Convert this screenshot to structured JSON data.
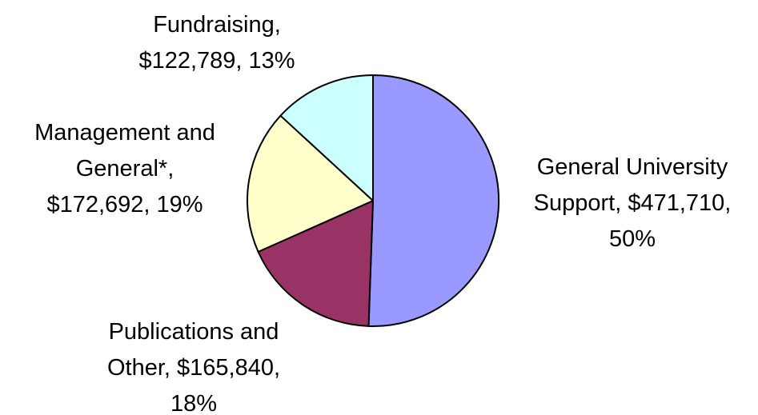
{
  "chart_data": {
    "type": "pie",
    "title": "",
    "start": "12 o'clock",
    "direction": "clockwise",
    "legend": "none (labels on slices)",
    "slices": [
      {
        "label": "General University Support",
        "amount": "$471,710",
        "value": 471710,
        "percent": "50%",
        "color": "#9999ff",
        "label_lines": [
          "General University",
          "Support, $471,710,",
          "50%"
        ]
      },
      {
        "label": "Publications and Other",
        "amount": "$165,840",
        "value": 165840,
        "percent": "18%",
        "color": "#993366",
        "label_lines": [
          "Publications and",
          "Other, $165,840,",
          "18%"
        ]
      },
      {
        "label": "Management and General*",
        "amount": "$172,692",
        "value": 172692,
        "percent": "19%",
        "color": "#ffffcc",
        "label_lines": [
          "Management and",
          "General*,",
          "$172,692, 19%"
        ]
      },
      {
        "label": "Fundraising",
        "amount": "$122,789",
        "value": 122789,
        "percent": "13%",
        "color": "#ccffff",
        "label_lines": [
          "Fundraising,",
          "$122,789, 13%"
        ]
      }
    ]
  }
}
